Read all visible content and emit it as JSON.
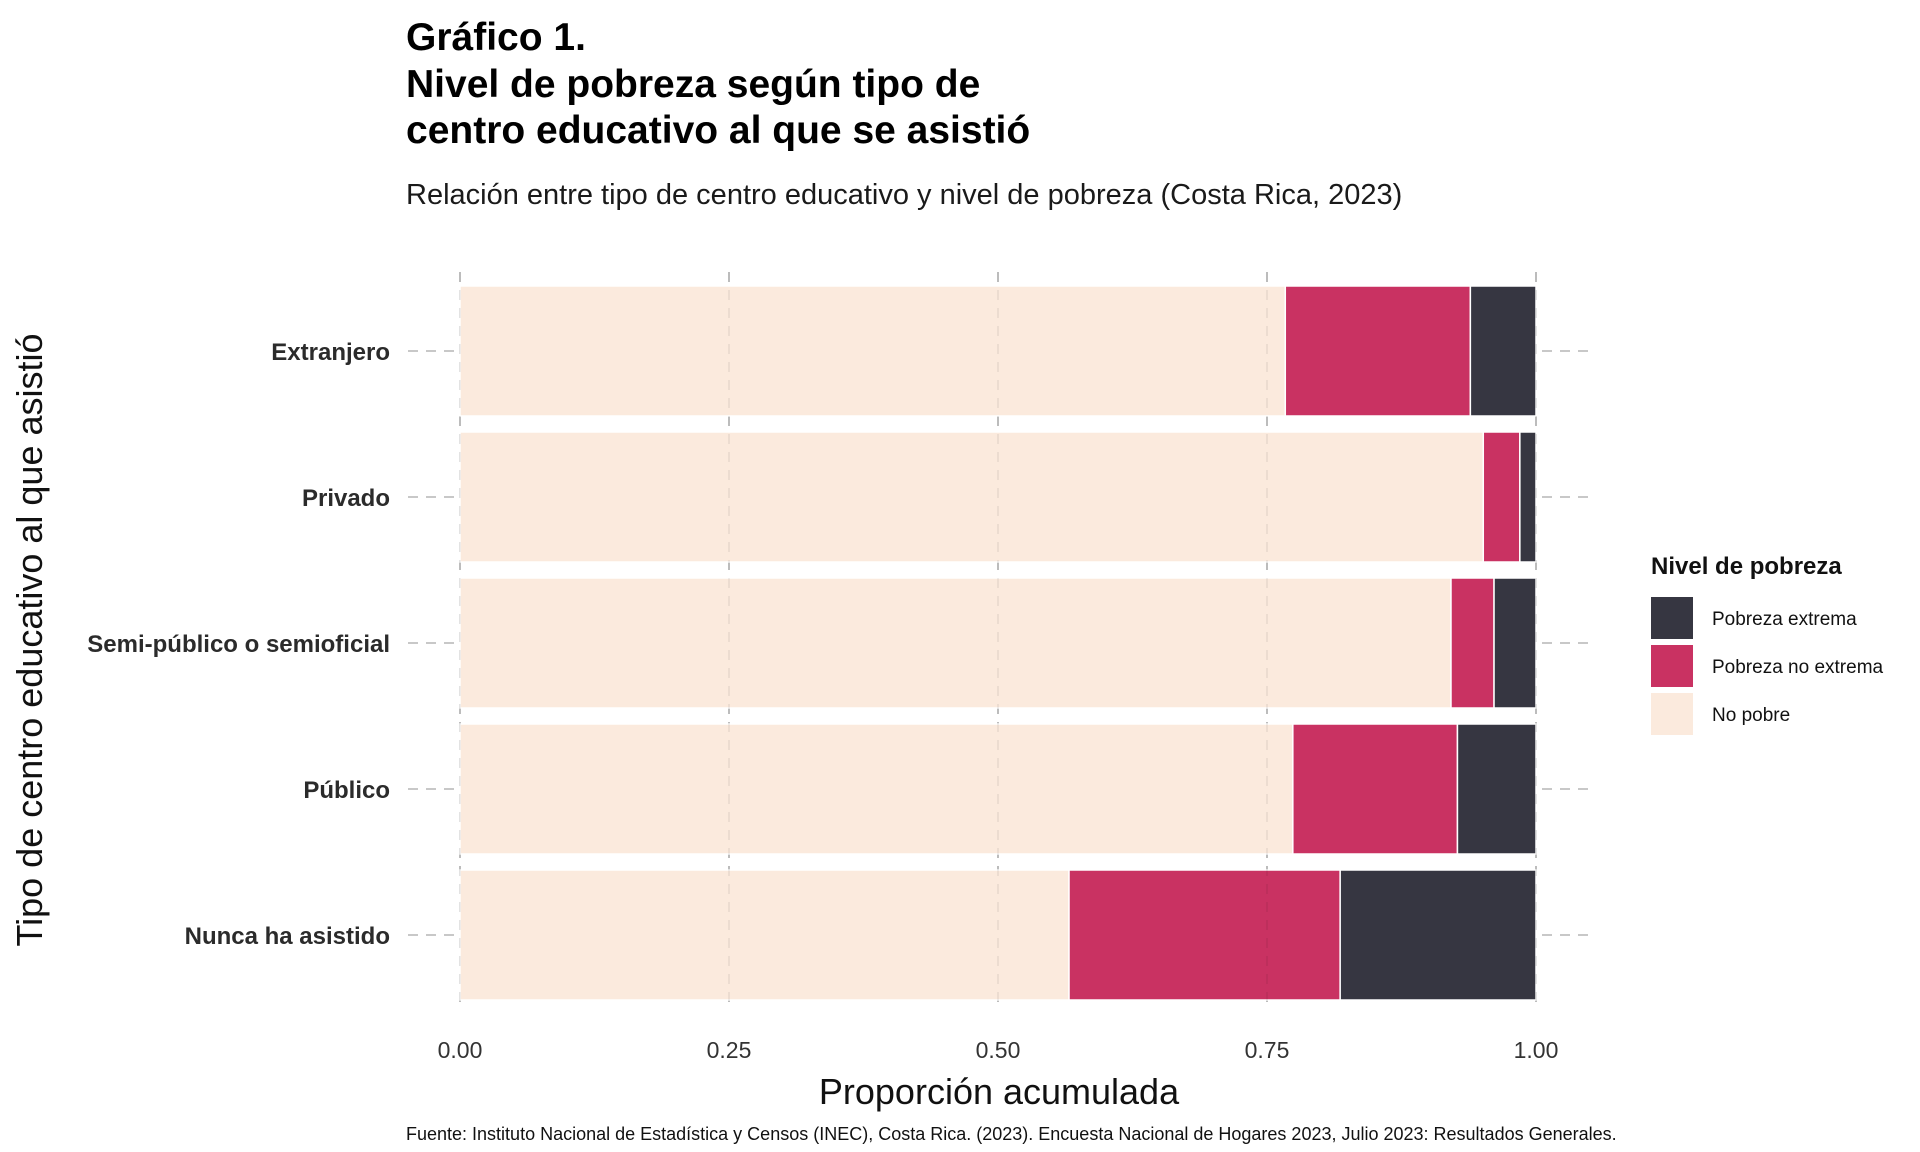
{
  "chart_data": {
    "type": "bar",
    "orientation": "horizontal",
    "stacked": true,
    "title_lines": [
      "Gráfico 1.",
      "Nivel de pobreza según tipo de",
      "centro educativo al que se asistió"
    ],
    "subtitle": "Relación entre tipo de centro educativo y nivel de pobreza (Costa Rica, 2023)",
    "xlabel": "Proporción acumulada",
    "ylabel": "Tipo de centro educativo al que asistió",
    "xlim": [
      0,
      1
    ],
    "xticks": [
      "0.00",
      "0.25",
      "0.50",
      "0.75",
      "1.00"
    ],
    "grid": true,
    "legend_title": "Nivel de pobreza",
    "legend_position": "right",
    "legend": [
      {
        "label": "Pobreza extrema",
        "color": "#363641"
      },
      {
        "label": "Pobreza no extrema",
        "color": "#c93262"
      },
      {
        "label": "No pobre",
        "color": "#fbeadd"
      }
    ],
    "categories": [
      "Extranjero",
      "Privado",
      "Semi-público o semioficial",
      "Público",
      "Nunca ha asistido"
    ],
    "series": [
      {
        "name": "No pobre",
        "color": "#fbeadd",
        "values": [
          0.767,
          0.951,
          0.921,
          0.774,
          0.566
        ]
      },
      {
        "name": "Pobreza no extrema",
        "color": "#c93262",
        "values": [
          0.172,
          0.034,
          0.04,
          0.153,
          0.252
        ]
      },
      {
        "name": "Pobreza extrema",
        "color": "#363641",
        "values": [
          0.061,
          0.015,
          0.039,
          0.073,
          0.182
        ]
      }
    ],
    "caption": "Fuente: Instituto Nacional de Estadística y Censos (INEC), Costa Rica. (2023). Encuesta Nacional de Hogares 2023, Julio 2023: Resultados Generales."
  }
}
